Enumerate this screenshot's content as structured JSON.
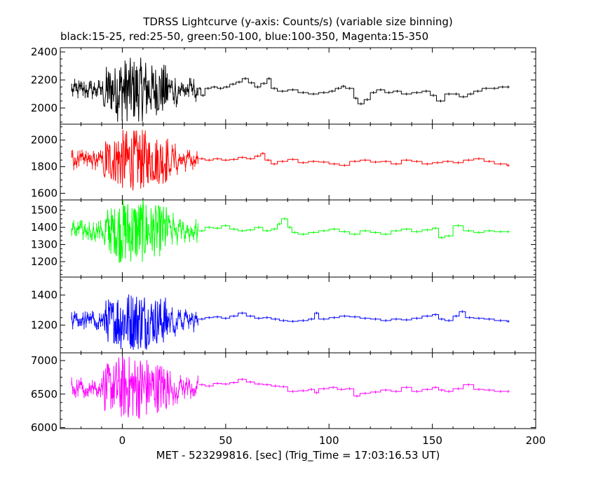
{
  "chart_data": {
    "type": "line",
    "title": "TDRSS Lightcurve (y-axis: Counts/s) (variable size binning)",
    "subtitle": "black:15-25, red:25-50, green:50-100, blue:100-350, Magenta:15-350",
    "xlabel": "MET - 523299816. [sec] (Trig_Time = 17:03:16.53 UT)",
    "xlim": [
      -30,
      200
    ],
    "x_ticks": [
      0,
      50,
      100,
      150,
      200
    ],
    "panels": [
      {
        "name": "black",
        "color": "#000000",
        "ylim": [
          1885,
          2430
        ],
        "y_ticks": [
          2000,
          2200,
          2400
        ],
        "base": 2130,
        "burst_amp": 230,
        "steps": [
          [
            37,
            2140
          ],
          [
            38,
            2090
          ],
          [
            40,
            2140
          ],
          [
            43,
            2150
          ],
          [
            46,
            2140
          ],
          [
            49,
            2150
          ],
          [
            52,
            2170
          ],
          [
            55,
            2185
          ],
          [
            58,
            2210
          ],
          [
            61,
            2180
          ],
          [
            64,
            2150
          ],
          [
            67,
            2175
          ],
          [
            70,
            2210
          ],
          [
            72,
            2140
          ],
          [
            75,
            2120
          ],
          [
            80,
            2130
          ],
          [
            85,
            2110
          ],
          [
            90,
            2100
          ],
          [
            95,
            2110
          ],
          [
            100,
            2120
          ],
          [
            103,
            2140
          ],
          [
            106,
            2155
          ],
          [
            108,
            2140
          ],
          [
            112,
            2070
          ],
          [
            114,
            2030
          ],
          [
            117,
            2060
          ],
          [
            120,
            2110
          ],
          [
            123,
            2130
          ],
          [
            127,
            2110
          ],
          [
            131,
            2120
          ],
          [
            135,
            2100
          ],
          [
            140,
            2110
          ],
          [
            145,
            2120
          ],
          [
            149,
            2090
          ],
          [
            152,
            2050
          ],
          [
            156,
            2100
          ],
          [
            160,
            2100
          ],
          [
            163,
            2080
          ],
          [
            167,
            2100
          ],
          [
            170,
            2120
          ],
          [
            174,
            2140
          ],
          [
            178,
            2140
          ],
          [
            182,
            2150
          ],
          [
            186,
            2150
          ]
        ]
      },
      {
        "name": "red",
        "color": "#ff0000",
        "ylim": [
          1550,
          2120
        ],
        "y_ticks": [
          1600,
          1800,
          2000
        ],
        "base": 1850,
        "burst_amp": 230,
        "steps": [
          [
            37,
            1860
          ],
          [
            40,
            1850
          ],
          [
            44,
            1860
          ],
          [
            48,
            1850
          ],
          [
            52,
            1855
          ],
          [
            56,
            1870
          ],
          [
            60,
            1860
          ],
          [
            64,
            1880
          ],
          [
            67,
            1900
          ],
          [
            69,
            1850
          ],
          [
            72,
            1820
          ],
          [
            75,
            1840
          ],
          [
            80,
            1855
          ],
          [
            85,
            1830
          ],
          [
            90,
            1840
          ],
          [
            95,
            1835
          ],
          [
            100,
            1820
          ],
          [
            105,
            1810
          ],
          [
            110,
            1840
          ],
          [
            115,
            1850
          ],
          [
            120,
            1835
          ],
          [
            125,
            1840
          ],
          [
            130,
            1820
          ],
          [
            135,
            1850
          ],
          [
            140,
            1840
          ],
          [
            145,
            1820
          ],
          [
            150,
            1830
          ],
          [
            155,
            1840
          ],
          [
            160,
            1830
          ],
          [
            165,
            1850
          ],
          [
            170,
            1860
          ],
          [
            175,
            1840
          ],
          [
            180,
            1820
          ],
          [
            186,
            1810
          ]
        ]
      },
      {
        "name": "green",
        "color": "#00ff00",
        "ylim": [
          1110,
          1560
        ],
        "y_ticks": [
          1200,
          1300,
          1400,
          1500
        ],
        "base": 1380,
        "burst_amp": 190,
        "steps": [
          [
            37,
            1380
          ],
          [
            40,
            1400
          ],
          [
            44,
            1395
          ],
          [
            48,
            1410
          ],
          [
            52,
            1390
          ],
          [
            56,
            1380
          ],
          [
            60,
            1385
          ],
          [
            64,
            1400
          ],
          [
            68,
            1380
          ],
          [
            72,
            1390
          ],
          [
            75,
            1420
          ],
          [
            77,
            1450
          ],
          [
            80,
            1400
          ],
          [
            82,
            1370
          ],
          [
            85,
            1360
          ],
          [
            90,
            1370
          ],
          [
            95,
            1380
          ],
          [
            100,
            1390
          ],
          [
            105,
            1375
          ],
          [
            110,
            1360
          ],
          [
            115,
            1380
          ],
          [
            120,
            1370
          ],
          [
            125,
            1360
          ],
          [
            130,
            1380
          ],
          [
            135,
            1390
          ],
          [
            140,
            1375
          ],
          [
            145,
            1385
          ],
          [
            150,
            1395
          ],
          [
            153,
            1340
          ],
          [
            156,
            1350
          ],
          [
            160,
            1410
          ],
          [
            165,
            1380
          ],
          [
            170,
            1370
          ],
          [
            175,
            1380
          ],
          [
            180,
            1375
          ],
          [
            186,
            1375
          ]
        ]
      },
      {
        "name": "blue",
        "color": "#0000ff",
        "ylim": [
          1015,
          1520
        ],
        "y_ticks": [
          1200,
          1400
        ],
        "base": 1230,
        "burst_amp": 200,
        "steps": [
          [
            37,
            1240
          ],
          [
            40,
            1250
          ],
          [
            44,
            1255
          ],
          [
            48,
            1245
          ],
          [
            52,
            1260
          ],
          [
            56,
            1280
          ],
          [
            60,
            1260
          ],
          [
            64,
            1245
          ],
          [
            68,
            1250
          ],
          [
            72,
            1240
          ],
          [
            76,
            1230
          ],
          [
            80,
            1225
          ],
          [
            85,
            1230
          ],
          [
            90,
            1240
          ],
          [
            93,
            1280
          ],
          [
            95,
            1240
          ],
          [
            100,
            1250
          ],
          [
            105,
            1260
          ],
          [
            110,
            1255
          ],
          [
            115,
            1245
          ],
          [
            120,
            1240
          ],
          [
            125,
            1230
          ],
          [
            130,
            1240
          ],
          [
            135,
            1235
          ],
          [
            140,
            1245
          ],
          [
            145,
            1260
          ],
          [
            150,
            1270
          ],
          [
            153,
            1240
          ],
          [
            156,
            1230
          ],
          [
            160,
            1260
          ],
          [
            163,
            1290
          ],
          [
            166,
            1250
          ],
          [
            170,
            1245
          ],
          [
            175,
            1240
          ],
          [
            180,
            1230
          ],
          [
            186,
            1225
          ]
        ]
      },
      {
        "name": "magenta",
        "color": "#ff00ff",
        "ylim": [
          5985,
          7115
        ],
        "y_ticks": [
          6000,
          6500,
          7000
        ],
        "base": 6600,
        "burst_amp": 480,
        "steps": [
          [
            37,
            6640
          ],
          [
            40,
            6620
          ],
          [
            44,
            6660
          ],
          [
            48,
            6650
          ],
          [
            52,
            6670
          ],
          [
            56,
            6720
          ],
          [
            60,
            6680
          ],
          [
            64,
            6650
          ],
          [
            68,
            6640
          ],
          [
            72,
            6620
          ],
          [
            76,
            6610
          ],
          [
            80,
            6540
          ],
          [
            85,
            6550
          ],
          [
            90,
            6570
          ],
          [
            93,
            6520
          ],
          [
            95,
            6580
          ],
          [
            100,
            6600
          ],
          [
            104,
            6570
          ],
          [
            108,
            6580
          ],
          [
            112,
            6470
          ],
          [
            115,
            6510
          ],
          [
            120,
            6530
          ],
          [
            125,
            6560
          ],
          [
            130,
            6540
          ],
          [
            135,
            6600
          ],
          [
            140,
            6540
          ],
          [
            145,
            6570
          ],
          [
            150,
            6600
          ],
          [
            153,
            6560
          ],
          [
            156,
            6540
          ],
          [
            160,
            6580
          ],
          [
            165,
            6640
          ],
          [
            170,
            6570
          ],
          [
            175,
            6560
          ],
          [
            180,
            6540
          ],
          [
            186,
            6540
          ]
        ]
      }
    ]
  }
}
